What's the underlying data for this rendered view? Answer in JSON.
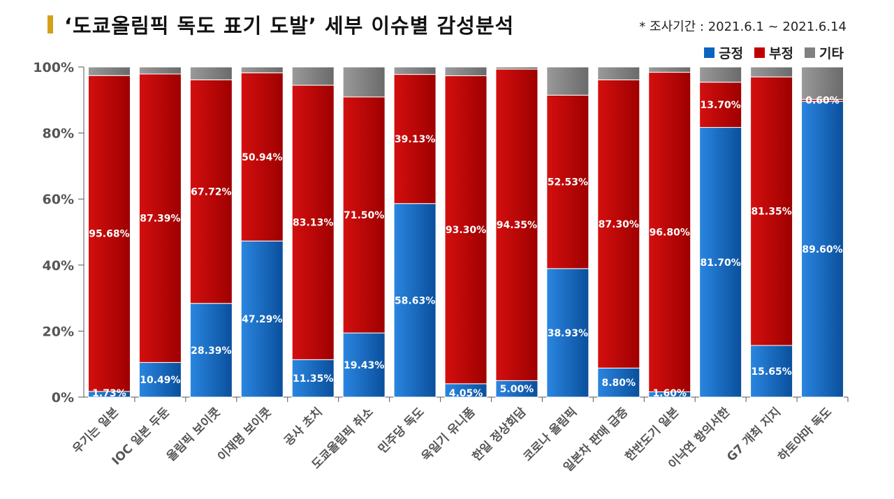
{
  "title": "‘도쿄올림픽 독도 표기 도발’ 세부 이슈별 감성분석",
  "period": "* 조사기간 : 2021.6.1 ~ 2021.6.14",
  "legend": {
    "positive": "긍정",
    "negative": "부정",
    "other": "기타"
  },
  "colors": {
    "positive": "#0b64c0",
    "negative": "#c00000",
    "other": "#808080",
    "title_marker": "#d4a017"
  },
  "chart_data": {
    "type": "bar",
    "stacked": true,
    "percent_stacked": true,
    "categories": [
      "우기는 일본",
      "IOC 일본 두둔",
      "올림픽 보이콧",
      "이재명 보이콧",
      "공사 초치",
      "도쿄올림픽 취소",
      "민주당 독도",
      "욱일기 유니폼",
      "한일 정상회담",
      "코로나 올림픽",
      "일본차 판매 급증",
      "한반도기 일본",
      "이낙연 항의서한",
      "G7 개최 지지",
      "하토야마 독도"
    ],
    "series": [
      {
        "name": "긍정",
        "values": [
          1.73,
          10.49,
          28.39,
          47.29,
          11.35,
          19.43,
          58.63,
          4.05,
          5.0,
          38.93,
          8.8,
          1.6,
          81.7,
          15.65,
          89.6
        ],
        "labels": [
          "1.73%",
          "10.49%",
          "28.39%",
          "47.29%",
          "11.35%",
          "19.43%",
          "58.63%",
          "4.05%",
          "5.00%",
          "38.93%",
          "8.80%",
          "1.60%",
          "81.70%",
          "15.65%",
          "89.60%"
        ]
      },
      {
        "name": "부정",
        "values": [
          95.68,
          87.39,
          67.72,
          50.94,
          83.13,
          71.5,
          39.13,
          93.3,
          94.35,
          52.53,
          87.3,
          96.8,
          13.7,
          81.35,
          0.6
        ],
        "labels": [
          "95.68%",
          "87.39%",
          "67.72%",
          "50.94%",
          "83.13%",
          "71.50%",
          "39.13%",
          "93.30%",
          "94.35%",
          "52.53%",
          "87.30%",
          "96.80%",
          "13.70%",
          "81.35%",
          "0.60%"
        ]
      },
      {
        "name": "기타",
        "values": [
          2.59,
          2.12,
          3.89,
          1.77,
          5.52,
          9.07,
          2.24,
          2.65,
          0.65,
          8.54,
          3.9,
          1.6,
          4.6,
          3.0,
          9.8
        ]
      }
    ],
    "ylim": [
      0,
      100
    ],
    "yticks": [
      "0%",
      "20%",
      "40%",
      "60%",
      "80%",
      "100%"
    ],
    "grid": false,
    "legend_position": "top-right"
  }
}
